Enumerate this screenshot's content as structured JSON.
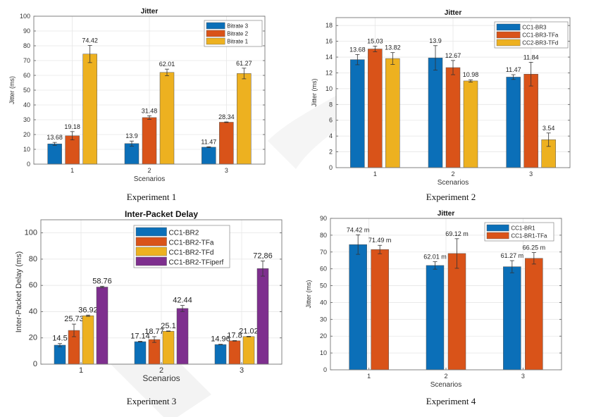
{
  "captions": [
    "Experiment 1",
    "Experiment 2",
    "Experiment 3",
    "Experiment 4"
  ],
  "chart_data": [
    {
      "type": "bar",
      "title": "Jitter",
      "xlabel": "Scenarios",
      "ylabel": "Jitter (ms)",
      "categories": [
        "1",
        "2",
        "3"
      ],
      "ylim": [
        0,
        100
      ],
      "yticks": [
        0,
        10,
        20,
        30,
        40,
        50,
        60,
        70,
        80,
        90,
        100
      ],
      "grid": true,
      "legend_position": "top-right",
      "series": [
        {
          "name": "Bitrate 3",
          "color": "#0b6fb8",
          "values": [
            13.68,
            13.9,
            11.47
          ],
          "labels": [
            "13.68",
            "13.9",
            "11.47"
          ],
          "err": [
            1.0,
            1.7,
            0.3
          ]
        },
        {
          "name": "Bitrate 2",
          "color": "#d95319",
          "values": [
            19.18,
            31.48,
            28.34
          ],
          "labels": [
            "19.18",
            "31.48",
            "28.34"
          ],
          "err": [
            2.8,
            1.2,
            0.2
          ]
        },
        {
          "name": "Bitrate 1",
          "color": "#edb120",
          "values": [
            74.42,
            62.01,
            61.27
          ],
          "labels": [
            "74.42",
            "62.01",
            "61.27"
          ],
          "err": [
            5.8,
            2.2,
            3.6
          ]
        }
      ]
    },
    {
      "type": "bar",
      "title": "Jitter",
      "xlabel": "Scenarios",
      "ylabel": "Jitter (ms)",
      "categories": [
        "1",
        "2",
        "3"
      ],
      "ylim": [
        0,
        19
      ],
      "yticks": [
        0,
        2,
        4,
        6,
        8,
        10,
        12,
        14,
        16,
        18
      ],
      "grid": true,
      "legend_position": "top-right",
      "series": [
        {
          "name": "CC1-BR3",
          "color": "#0b6fb8",
          "values": [
            13.68,
            13.9,
            11.47
          ],
          "labels": [
            "13.68",
            "13.9",
            "11.47"
          ],
          "err": [
            0.65,
            1.55,
            0.3
          ]
        },
        {
          "name": "CC1-BR3-TFa",
          "color": "#d95319",
          "values": [
            15.03,
            12.67,
            11.84
          ],
          "labels": [
            "15.03",
            "12.67",
            "11.84"
          ],
          "err": [
            0.35,
            0.9,
            1.5
          ]
        },
        {
          "name": "CC2-BR3-TFd",
          "color": "#edb120",
          "values": [
            13.82,
            10.98,
            3.54
          ],
          "labels": [
            "13.82",
            "10.98",
            "3.54"
          ],
          "err": [
            0.75,
            0.15,
            0.85
          ]
        }
      ]
    },
    {
      "type": "bar",
      "title": "Inter-Packet Delay",
      "xlabel": "Scenarios",
      "ylabel": "Inter-Packet Delay (ms)",
      "categories": [
        "1",
        "2",
        "3"
      ],
      "ylim": [
        0,
        110
      ],
      "yticks": [
        0,
        20,
        40,
        60,
        80,
        100
      ],
      "grid": true,
      "legend_position": "top-right",
      "series": [
        {
          "name": "CC1-BR2",
          "color": "#0b6fb8",
          "values": [
            14.5,
            17.14,
            14.96
          ],
          "labels": [
            "14.5",
            "17.14",
            "14.96"
          ],
          "err": [
            1.2,
            0.3,
            0.2
          ]
        },
        {
          "name": "CC1-BR2-TFa",
          "color": "#d95319",
          "values": [
            25.73,
            18.77,
            17.8
          ],
          "labels": [
            "25.73",
            "18.77",
            "17.8"
          ],
          "err": [
            4.8,
            2.2,
            0.2
          ]
        },
        {
          "name": "CC1-BR2-TFd",
          "color": "#edb120",
          "values": [
            36.92,
            25.1,
            21.02
          ],
          "labels": [
            "36.92",
            "25.1",
            "21.02"
          ],
          "err": [
            0.5,
            0.2,
            0.2
          ]
        },
        {
          "name": "CC1-BR2-TFiperf",
          "color": "#7e2f8e",
          "values": [
            58.76,
            42.44,
            72.86
          ],
          "labels": [
            "58.76",
            "42.44",
            "72,86"
          ],
          "err": [
            0.6,
            2.3,
            5.8
          ]
        }
      ]
    },
    {
      "type": "bar",
      "title": "Jitter",
      "xlabel": "Scenarios",
      "ylabel": "Jitter (ms)",
      "categories": [
        "1",
        "2",
        "3"
      ],
      "ylim": [
        0,
        90
      ],
      "yticks": [
        0,
        10,
        20,
        30,
        40,
        50,
        60,
        70,
        80,
        90
      ],
      "grid": true,
      "legend_position": "top-right",
      "series": [
        {
          "name": "CC1-BR1",
          "color": "#0b6fb8",
          "values": [
            74.42,
            62.01,
            61.27
          ],
          "labels": [
            "74.42 m",
            "62.01 m",
            "61.27 m"
          ],
          "err": [
            5.8,
            2.2,
            3.6
          ]
        },
        {
          "name": "CC1-BR1-TFa",
          "color": "#d95319",
          "values": [
            71.49,
            69.12,
            66.25
          ],
          "labels": [
            "71.49 m",
            "69.12 m",
            "66.25 m"
          ],
          "err": [
            2.5,
            8.8,
            3.4
          ]
        }
      ]
    }
  ]
}
